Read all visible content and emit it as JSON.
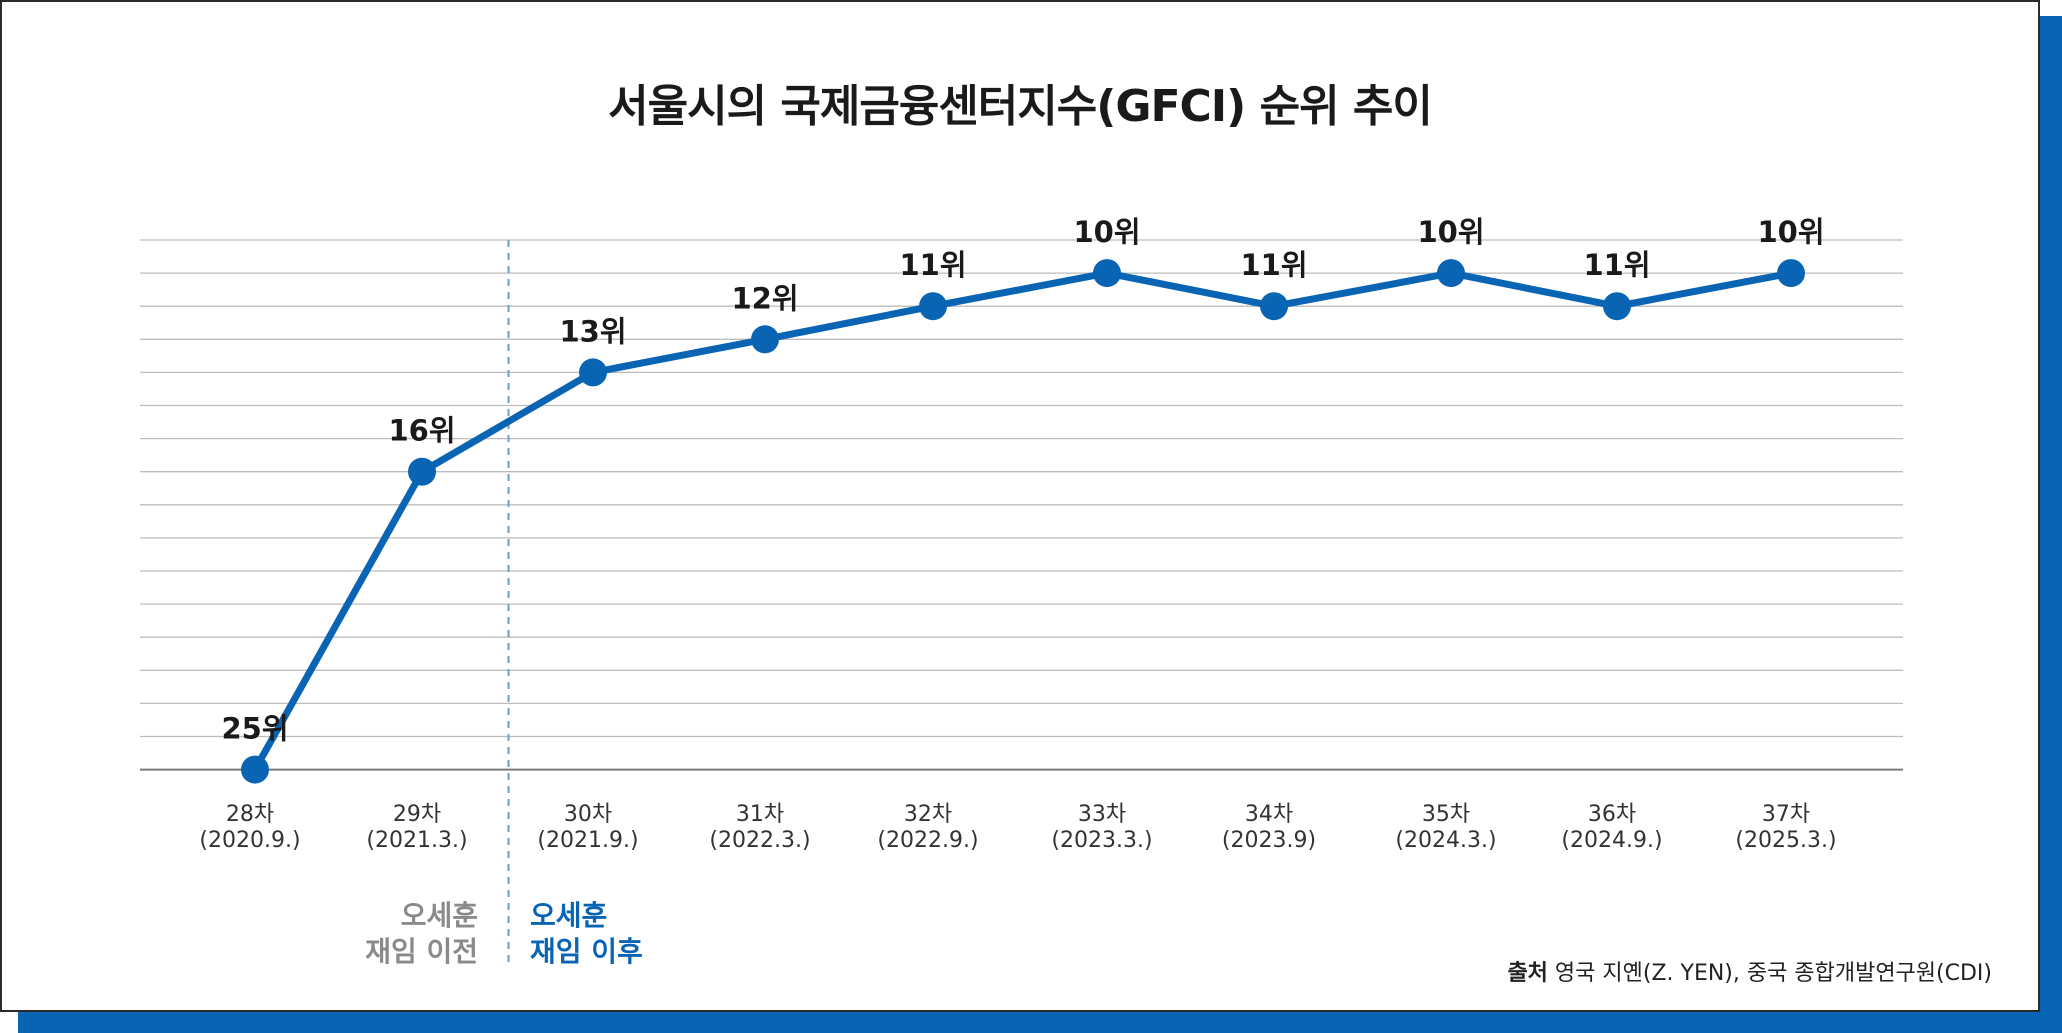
{
  "chart_data": {
    "type": "line",
    "title": "서울시의 국제금융센터지수(GFCI) 순위 추이",
    "categories": [
      [
        "28차",
        "(2020.9.)"
      ],
      [
        "29차",
        "(2021.3.)"
      ],
      [
        "30차",
        "(2021.9.)"
      ],
      [
        "31차",
        "(2022.3.)"
      ],
      [
        "32차",
        "(2022.9.)"
      ],
      [
        "33차",
        "(2023.3.)"
      ],
      [
        "34차",
        "(2023.9)"
      ],
      [
        "35차",
        "(2024.3.)"
      ],
      [
        "36차",
        "(2024.9.)"
      ],
      [
        "37차",
        "(2025.3.)"
      ]
    ],
    "values": [
      25,
      16,
      13,
      12,
      11,
      10,
      11,
      10,
      11,
      10
    ],
    "value_labels": [
      "25위",
      "16위",
      "13위",
      "12위",
      "11위",
      "10위",
      "11위",
      "10위",
      "11위",
      "10위"
    ],
    "y_axis": "rank (lower is better, inverted)",
    "ylim": [
      25,
      9
    ],
    "grid": true,
    "line_color": "#0a64b4",
    "divider_after_index": 1
  },
  "annotations": {
    "before": [
      "오세훈",
      "재임 이전"
    ],
    "after": [
      "오세훈",
      "재임 이후"
    ]
  },
  "source": {
    "label": "출처",
    "text": "영국 지옌(Z. YEN), 중국 종합개발연구원(CDI)"
  },
  "colors": {
    "accent": "#0a64b4",
    "before_text": "#8a8a8a",
    "grid": "#bdbdbd"
  }
}
